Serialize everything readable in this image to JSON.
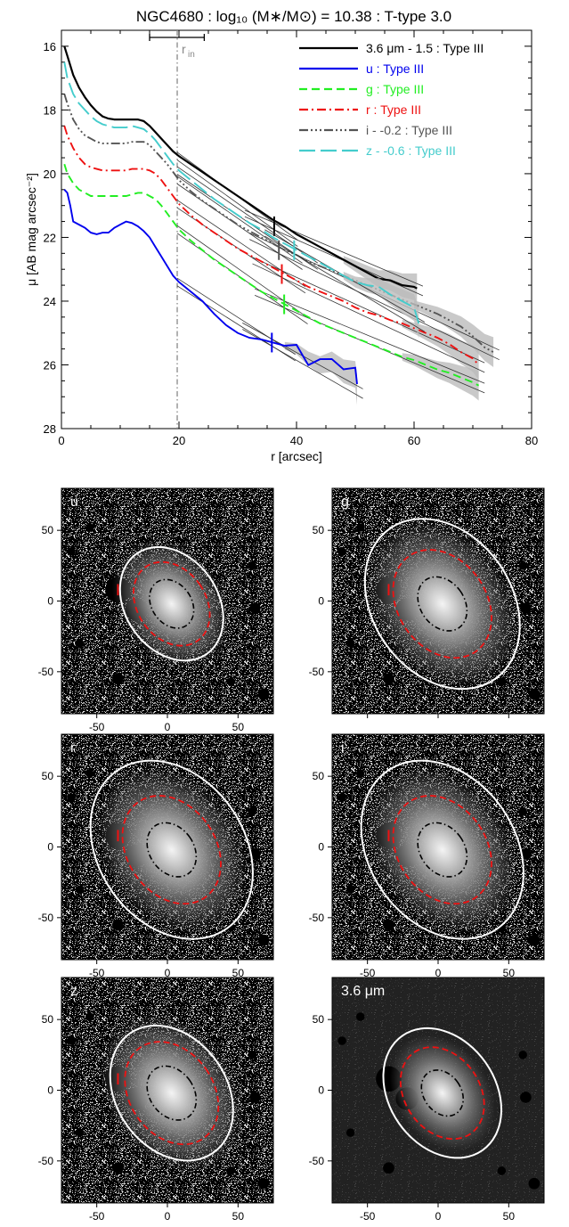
{
  "title": "NGC4680 : log₁₀ (M∗/M⊙) = 10.38 : T-type 3.0",
  "colors": {
    "ir": "#000000",
    "u": "#0000ee",
    "g": "#22ee22",
    "r": "#ee1111",
    "i": "#555555",
    "z": "#44cccc",
    "fit": "#666666",
    "rin": "#888888"
  },
  "chart_data": [
    {
      "type": "line",
      "title": "NGC4680 : log₁₀ (M∗/M⊙) = 10.38 : T-type 3.0",
      "xlabel": "r [arcsec]",
      "ylabel": "μ [AB mag arcsec⁻²]",
      "xlim": [
        0,
        80
      ],
      "ylim": [
        28,
        15.5
      ],
      "xticks": [
        "0",
        "20",
        "40",
        "60",
        "80"
      ],
      "yticks": [
        "16",
        "18",
        "20",
        "22",
        "24",
        "26",
        "28"
      ],
      "legend": "top-right",
      "r_in": {
        "label": "r",
        "sub": "in",
        "value": 19.7,
        "err": [
          15,
          24.3
        ]
      },
      "series": [
        {
          "name": "3.6 μm - 1.5 : Type III",
          "key": "ir",
          "dash": "",
          "break": 36.2,
          "x": [
            0.5,
            1,
            2,
            3,
            4,
            5,
            6,
            7,
            8,
            9,
            10,
            11,
            12,
            13,
            14,
            15,
            16,
            17,
            18,
            19,
            20,
            22,
            24,
            26,
            28,
            30,
            32,
            34,
            36,
            38,
            40,
            42,
            44,
            46,
            48,
            50,
            52,
            54,
            56,
            58,
            60,
            60.5
          ],
          "y": [
            16.0,
            16.3,
            16.9,
            17.3,
            17.6,
            17.85,
            18.05,
            18.2,
            18.27,
            18.3,
            18.3,
            18.3,
            18.3,
            18.3,
            18.35,
            18.5,
            18.7,
            18.9,
            19.1,
            19.3,
            19.45,
            19.7,
            19.95,
            20.2,
            20.45,
            20.7,
            20.95,
            21.2,
            21.45,
            21.65,
            21.9,
            22.1,
            22.3,
            22.5,
            22.7,
            22.9,
            23.1,
            23.3,
            23.35,
            23.5,
            23.55,
            23.6
          ]
        },
        {
          "name": "u : Type III",
          "key": "u",
          "dash": "",
          "break": 35.8,
          "x": [
            0.5,
            1,
            1.5,
            2,
            3,
            4,
            5,
            6,
            7,
            8,
            9,
            10,
            11,
            12,
            13,
            14,
            15,
            16,
            17,
            18,
            19,
            20,
            22,
            24,
            26,
            28,
            30,
            32,
            34,
            36,
            38,
            40,
            42,
            44,
            46,
            48,
            50,
            50.3
          ],
          "y": [
            20.5,
            20.6,
            21.0,
            21.5,
            21.6,
            21.7,
            21.85,
            21.9,
            21.85,
            21.85,
            21.7,
            21.6,
            21.5,
            21.55,
            21.65,
            21.8,
            22.0,
            22.3,
            22.6,
            22.9,
            23.2,
            23.4,
            23.7,
            24.0,
            24.4,
            24.75,
            25.0,
            25.15,
            25.2,
            25.3,
            25.4,
            25.5,
            25.8,
            26.0,
            25.9,
            26.2,
            26.3,
            26.8
          ]
        },
        {
          "name": "g : Type III",
          "key": "g",
          "dash": "9,5",
          "break": 37.9,
          "x": [
            0.5,
            1,
            2,
            3,
            4,
            5,
            6,
            7,
            8,
            9,
            10,
            11,
            12,
            13,
            14,
            15,
            16,
            17,
            18,
            19,
            20,
            22,
            24,
            26,
            28,
            30,
            32,
            34,
            36,
            38,
            40,
            42,
            44,
            46,
            48,
            50,
            52,
            54,
            56,
            58,
            60,
            62,
            64,
            66,
            68,
            70,
            71
          ],
          "y": [
            19.7,
            20.0,
            20.3,
            20.5,
            20.6,
            20.7,
            20.7,
            20.7,
            20.7,
            20.7,
            20.7,
            20.7,
            20.65,
            20.6,
            20.6,
            20.7,
            20.8,
            21.0,
            21.25,
            21.5,
            21.75,
            22.1,
            22.4,
            22.7,
            22.95,
            23.2,
            23.45,
            23.7,
            23.9,
            24.1,
            24.3,
            24.5,
            24.7,
            24.85,
            25.0,
            25.15,
            25.3,
            25.45,
            25.6,
            25.75,
            25.85,
            26.0,
            26.15,
            26.25,
            26.4,
            26.55,
            26.65
          ]
        },
        {
          "name": "r : Type III",
          "key": "r",
          "dash": "10,4,2,4",
          "break": 37.5,
          "x": [
            0.5,
            1,
            2,
            3,
            4,
            5,
            6,
            7,
            8,
            9,
            10,
            11,
            12,
            13,
            14,
            15,
            16,
            17,
            18,
            19,
            20,
            22,
            24,
            26,
            28,
            30,
            32,
            34,
            36,
            38,
            40,
            42,
            44,
            46,
            48,
            50,
            52,
            54,
            56,
            58,
            60,
            62,
            64,
            66,
            68,
            70,
            71
          ],
          "y": [
            18.5,
            18.8,
            19.2,
            19.5,
            19.7,
            19.8,
            19.85,
            19.9,
            19.9,
            19.9,
            19.9,
            19.9,
            19.85,
            19.85,
            19.85,
            19.9,
            20.0,
            20.2,
            20.45,
            20.7,
            20.95,
            21.3,
            21.6,
            21.85,
            22.1,
            22.35,
            22.55,
            22.75,
            22.95,
            23.15,
            23.35,
            23.55,
            23.7,
            23.85,
            24.0,
            24.2,
            24.35,
            24.45,
            24.6,
            24.7,
            24.85,
            25.0,
            25.15,
            25.35,
            25.6,
            25.8,
            26.0
          ]
        },
        {
          "name": "i - -0.2 : Type III",
          "key": "i",
          "dash": "10,3,2,3,2,3,2,3",
          "break": 37.0,
          "x": [
            0.5,
            1,
            2,
            3,
            4,
            5,
            6,
            7,
            8,
            9,
            10,
            11,
            12,
            13,
            14,
            15,
            16,
            17,
            18,
            19,
            20,
            22,
            24,
            26,
            28,
            30,
            32,
            34,
            36,
            38,
            40,
            42,
            44,
            46,
            48,
            50,
            52,
            54,
            56,
            58,
            60,
            62,
            64,
            66,
            68,
            70,
            72,
            73.5
          ],
          "y": [
            17.5,
            17.8,
            18.3,
            18.6,
            18.8,
            18.9,
            19.0,
            19.05,
            19.05,
            19.05,
            19.05,
            19.05,
            19.0,
            19.0,
            19.0,
            19.1,
            19.3,
            19.5,
            19.7,
            19.95,
            20.2,
            20.55,
            20.85,
            21.1,
            21.35,
            21.6,
            21.8,
            22.0,
            22.2,
            22.4,
            22.55,
            22.75,
            22.9,
            23.05,
            23.2,
            23.35,
            23.5,
            23.65,
            23.8,
            23.95,
            24.1,
            24.25,
            24.4,
            24.6,
            24.8,
            25.1,
            25.45,
            25.6
          ]
        },
        {
          "name": "z - -0.6 : Type III",
          "key": "z",
          "dash": "18,6",
          "break": 39.6,
          "x": [
            0.5,
            1,
            2,
            3,
            4,
            5,
            6,
            7,
            8,
            9,
            10,
            11,
            12,
            13,
            14,
            15,
            16,
            17,
            18,
            19,
            20,
            22,
            24,
            26,
            28,
            30,
            32,
            34,
            36,
            38,
            40,
            42,
            44,
            46,
            48,
            50,
            52,
            54,
            56,
            58,
            60,
            60.8
          ],
          "y": [
            16.5,
            17.0,
            17.5,
            17.8,
            18.0,
            18.2,
            18.35,
            18.45,
            18.5,
            18.55,
            18.55,
            18.55,
            18.5,
            18.55,
            18.6,
            18.75,
            18.95,
            19.2,
            19.45,
            19.7,
            19.9,
            20.2,
            20.5,
            20.8,
            21.05,
            21.3,
            21.55,
            21.75,
            22.0,
            22.2,
            22.4,
            22.6,
            22.8,
            23.0,
            23.2,
            23.4,
            23.5,
            23.55,
            23.8,
            24.0,
            24.2,
            24.7
          ]
        }
      ]
    },
    {
      "type": "image",
      "panels": [
        {
          "label": "u",
          "key": "u",
          "bg": "noise",
          "outer": 42,
          "mid": 31,
          "inner": 18,
          "xticks": [
            "-50",
            "0",
            "50"
          ],
          "yticks": [
            "50",
            "0",
            "-50"
          ]
        },
        {
          "label": "g",
          "key": "g",
          "bg": "noise",
          "outer": 63,
          "mid": 40,
          "inner": 20,
          "xticks": [],
          "yticks": [
            "50",
            "0",
            "-50"
          ]
        },
        {
          "label": "r",
          "key": "r",
          "bg": "noise",
          "outer": 66,
          "mid": 40,
          "inner": 20,
          "xticks": [
            "-50",
            "0",
            "50"
          ],
          "yticks": [
            "50",
            "0",
            "-50"
          ]
        },
        {
          "label": "i",
          "key": "i",
          "bg": "noise",
          "outer": 66,
          "mid": 40,
          "inner": 20,
          "xticks": [
            "-50",
            "0",
            "50"
          ],
          "yticks": [
            "50",
            "0",
            "-50"
          ]
        },
        {
          "label": "z",
          "key": "z",
          "bg": "noise",
          "outer": 50,
          "mid": 38,
          "inner": 20,
          "xticks": [
            "-50",
            "0",
            "50"
          ],
          "yticks": [
            "50",
            "0",
            "-50"
          ]
        },
        {
          "label": "3.6 μm",
          "key": "ir",
          "bg": "dark",
          "outer": 48,
          "mid": 34,
          "inner": 17,
          "xticks": [
            "-50",
            "0",
            "50"
          ],
          "yticks": [
            "50",
            "0",
            "-50"
          ]
        }
      ]
    }
  ]
}
